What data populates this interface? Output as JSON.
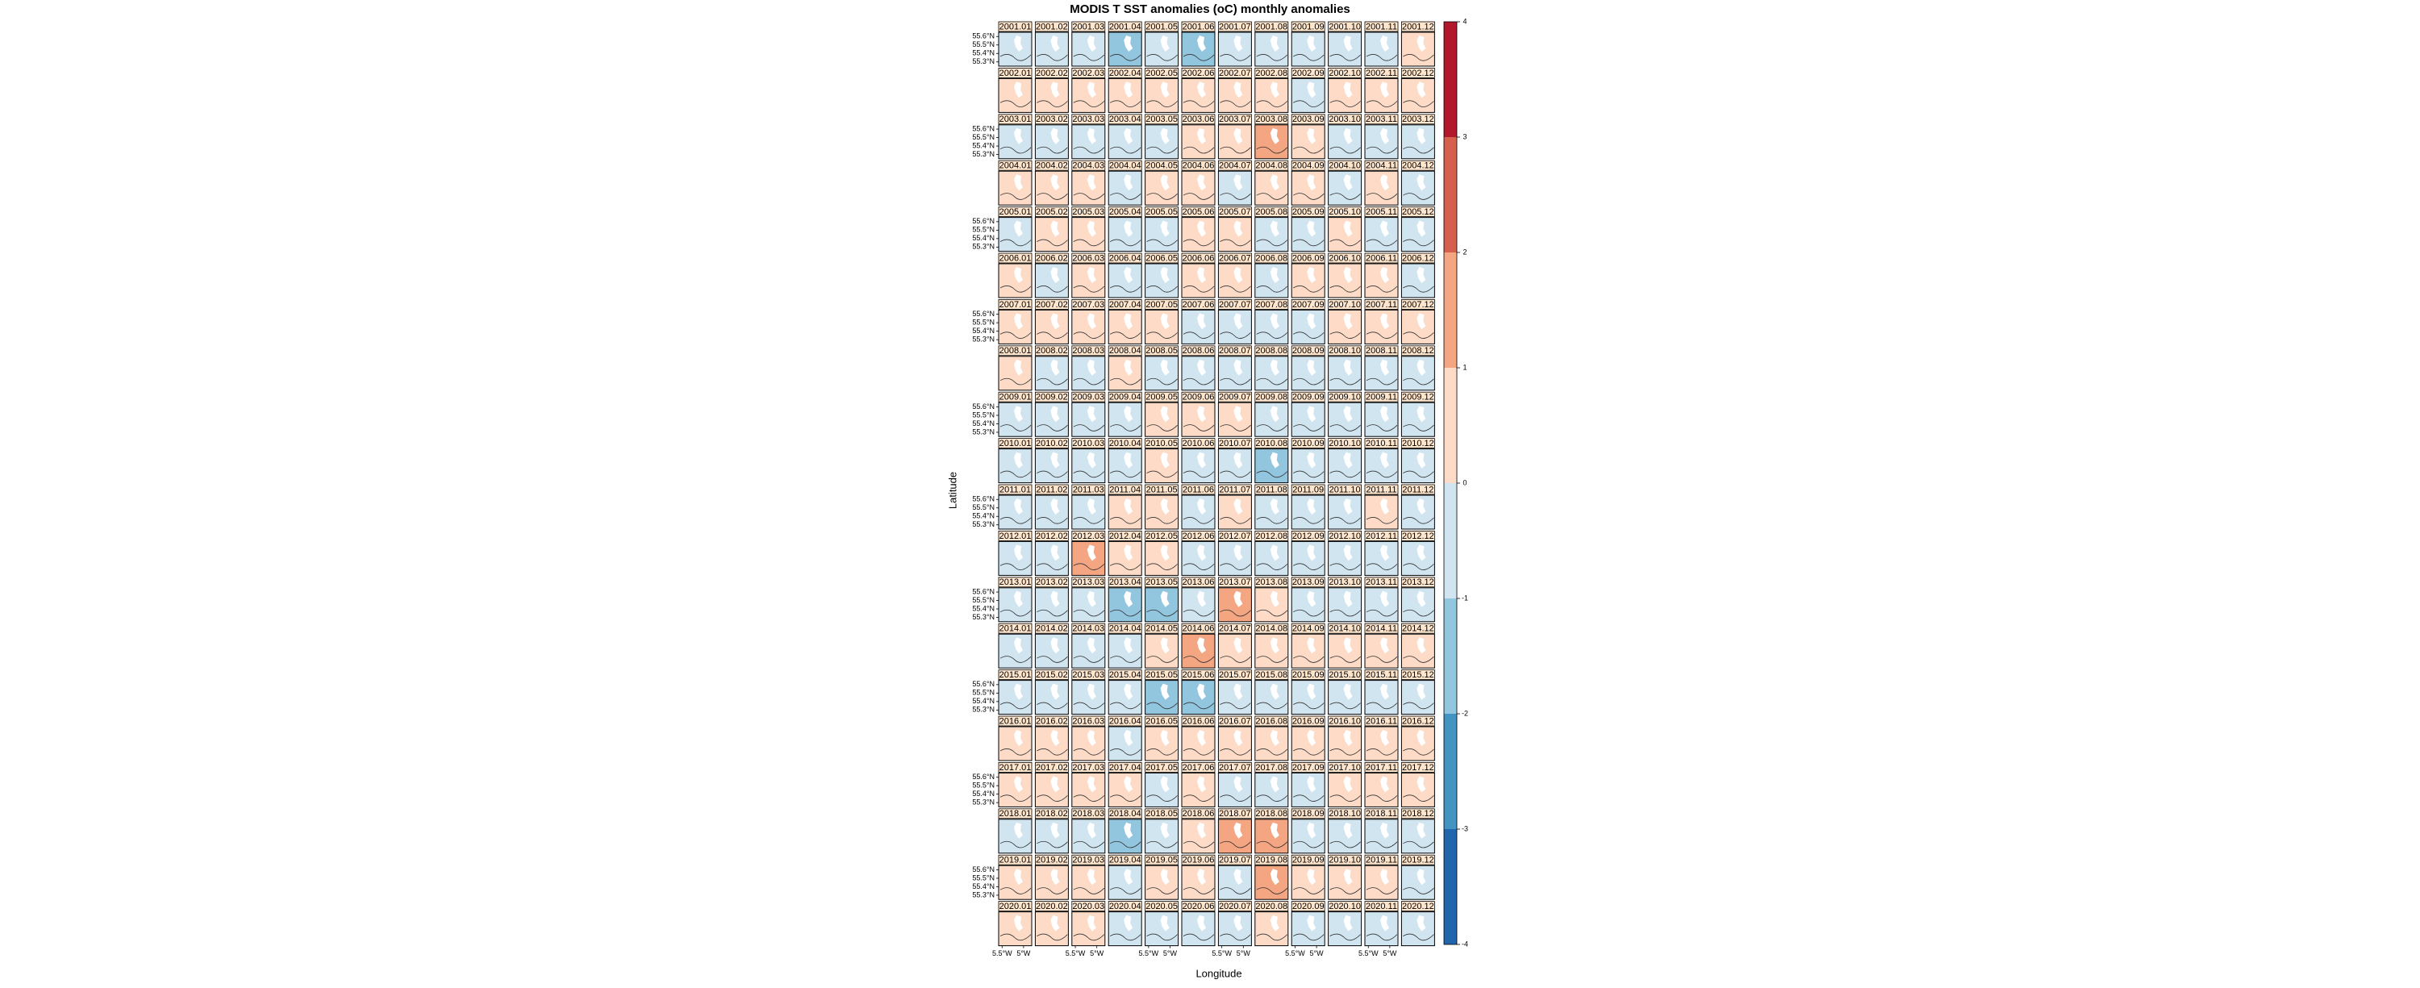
{
  "chart_data": {
    "type": "small-multiples-map",
    "title": "MODIS T SST anomalies (oC) monthly anomalies",
    "xlabel": "Longitude",
    "ylabel": "Latitude",
    "xlim": [
      -5.58,
      -4.81
    ],
    "ylim": [
      55.25,
      55.65
    ],
    "xticks": [
      {
        "value": -5.5,
        "label": "5.5°W"
      },
      {
        "value": -5,
        "label": "5°W"
      }
    ],
    "yticks": [
      {
        "value": 55.6,
        "label": "55.6°N"
      },
      {
        "value": 55.5,
        "label": "55.5°N"
      },
      {
        "value": 55.4,
        "label": "55.4°N"
      },
      {
        "value": 55.3,
        "label": "55.3°N"
      }
    ],
    "colorbar": {
      "lim": [
        -4,
        4
      ],
      "ticks": [
        -4,
        -3,
        -2,
        -1,
        0,
        1,
        2,
        3,
        4
      ],
      "colors": [
        "#2166ac",
        "#4393c3",
        "#92c5de",
        "#d1e5f0",
        "#fddbc7",
        "#f4a582",
        "#d6604d",
        "#b2182b"
      ]
    },
    "panel_labels": [
      [
        "2001.01",
        "2001.02",
        "2001.03",
        "2001.04",
        "2001.05",
        "2001.06",
        "2001.07",
        "2001.08",
        "2001.09",
        "2001.10",
        "2001.11",
        "2001.12"
      ],
      [
        "2002.01",
        "2002.02",
        "2002.03",
        "2002.04",
        "2002.05",
        "2002.06",
        "2002.07",
        "2002.08",
        "2002.09",
        "2002.10",
        "2002.11",
        "2002.12"
      ],
      [
        "2003.01",
        "2003.02",
        "2003.03",
        "2003.04",
        "2003.05",
        "2003.06",
        "2003.07",
        "2003.08",
        "2003.09",
        "2003.10",
        "2003.11",
        "2003.12"
      ],
      [
        "2004.01",
        "2004.02",
        "2004.03",
        "2004.04",
        "2004.05",
        "2004.06",
        "2004.07",
        "2004.08",
        "2004.09",
        "2004.10",
        "2004.11",
        "2004.12"
      ],
      [
        "2005.01",
        "2005.02",
        "2005.03",
        "2005.04",
        "2005.05",
        "2005.06",
        "2005.07",
        "2005.08",
        "2005.09",
        "2005.10",
        "2005.11",
        "2005.12"
      ],
      [
        "2006.01",
        "2006.02",
        "2006.03",
        "2006.04",
        "2006.05",
        "2006.06",
        "2006.07",
        "2006.08",
        "2006.09",
        "2006.10",
        "2006.11",
        "2006.12"
      ],
      [
        "2007.01",
        "2007.02",
        "2007.03",
        "2007.04",
        "2007.05",
        "2007.06",
        "2007.07",
        "2007.08",
        "2007.09",
        "2007.10",
        "2007.11",
        "2007.12"
      ],
      [
        "2008.01",
        "2008.02",
        "2008.03",
        "2008.04",
        "2008.05",
        "2008.06",
        "2008.07",
        "2008.08",
        "2008.09",
        "2008.10",
        "2008.11",
        "2008.12"
      ],
      [
        "2009.01",
        "2009.02",
        "2009.03",
        "2009.04",
        "2009.05",
        "2009.06",
        "2009.07",
        "2009.08",
        "2009.09",
        "2009.10",
        "2009.11",
        "2009.12"
      ],
      [
        "2010.01",
        "2010.02",
        "2010.03",
        "2010.04",
        "2010.05",
        "2010.06",
        "2010.07",
        "2010.08",
        "2010.09",
        "2010.10",
        "2010.11",
        "2010.12"
      ],
      [
        "2011.01",
        "2011.02",
        "2011.03",
        "2011.04",
        "2011.05",
        "2011.06",
        "2011.07",
        "2011.08",
        "2011.09",
        "2011.10",
        "2011.11",
        "2011.12"
      ],
      [
        "2012.01",
        "2012.02",
        "2012.03",
        "2012.04",
        "2012.05",
        "2012.06",
        "2012.07",
        "2012.08",
        "2012.09",
        "2012.10",
        "2012.11",
        "2012.12"
      ],
      [
        "2013.01",
        "2013.02",
        "2013.03",
        "2013.04",
        "2013.05",
        "2013.06",
        "2013.07",
        "2013.08",
        "2013.09",
        "2013.10",
        "2013.11",
        "2013.12"
      ],
      [
        "2014.01",
        "2014.02",
        "2014.03",
        "2014.04",
        "2014.05",
        "2014.06",
        "2014.07",
        "2014.08",
        "2014.09",
        "2014.10",
        "2014.11",
        "2014.12"
      ],
      [
        "2015.01",
        "2015.02",
        "2015.03",
        "2015.04",
        "2015.05",
        "2015.06",
        "2015.07",
        "2015.08",
        "2015.09",
        "2015.10",
        "2015.11",
        "2015.12"
      ],
      [
        "2016.01",
        "2016.02",
        "2016.03",
        "2016.04",
        "2016.05",
        "2016.06",
        "2016.07",
        "2016.08",
        "2016.09",
        "2016.10",
        "2016.11",
        "2016.12"
      ],
      [
        "2017.01",
        "2017.02",
        "2017.03",
        "2017.04",
        "2017.05",
        "2017.06",
        "2017.07",
        "2017.08",
        "2017.09",
        "2017.10",
        "2017.11",
        "2017.12"
      ],
      [
        "2018.01",
        "2018.02",
        "2018.03",
        "2018.04",
        "2018.05",
        "2018.06",
        "2018.07",
        "2018.08",
        "2018.09",
        "2018.10",
        "2018.11",
        "2018.12"
      ],
      [
        "2019.01",
        "2019.02",
        "2019.03",
        "2019.04",
        "2019.05",
        "2019.06",
        "2019.07",
        "2019.08",
        "2019.09",
        "2019.10",
        "2019.11",
        "2019.12"
      ],
      [
        "2020.01",
        "2020.02",
        "2020.03",
        "2020.04",
        "2020.05",
        "2020.06",
        "2020.07",
        "2020.08",
        "2020.09",
        "2020.10",
        "2020.11",
        "2020.12"
      ]
    ],
    "values": [
      [
        -0.5,
        -0.5,
        -0.5,
        -1.2,
        -0.5,
        -1.2,
        -0.5,
        -0.5,
        -0.5,
        -0.5,
        -0.5,
        0.5
      ],
      [
        0.5,
        0.5,
        0.5,
        0.5,
        0.5,
        0.5,
        0.5,
        0.5,
        -0.5,
        0.5,
        0.5,
        0.5
      ],
      [
        -0.5,
        -0.5,
        -0.5,
        -0.5,
        -0.5,
        0.5,
        0.5,
        1.2,
        0.5,
        -0.5,
        -0.5,
        -0.5
      ],
      [
        0.5,
        0.5,
        0.5,
        -0.5,
        0.5,
        0.5,
        -0.5,
        0.5,
        0.5,
        -0.5,
        0.5,
        -0.5
      ],
      [
        -0.5,
        0.5,
        0.5,
        -0.5,
        -0.5,
        0.5,
        0.5,
        -0.5,
        -0.5,
        0.5,
        -0.5,
        -0.5
      ],
      [
        0.5,
        -0.5,
        0.5,
        -0.5,
        -0.5,
        0.5,
        0.5,
        -0.5,
        0.5,
        0.5,
        0.5,
        -0.5
      ],
      [
        0.5,
        0.5,
        0.5,
        0.5,
        0.5,
        -0.5,
        -0.5,
        -0.5,
        -0.5,
        0.5,
        0.5,
        0.5
      ],
      [
        0.5,
        -0.5,
        -0.5,
        0.5,
        -0.5,
        -0.5,
        -0.5,
        -0.5,
        -0.5,
        -0.5,
        -0.5,
        -0.5
      ],
      [
        -0.5,
        -0.5,
        -0.5,
        -0.5,
        0.5,
        0.5,
        0.5,
        -0.5,
        -0.5,
        -0.5,
        -0.5,
        -0.5
      ],
      [
        -0.5,
        -0.5,
        -0.5,
        -0.5,
        0.5,
        -0.5,
        -0.5,
        -1.2,
        -0.5,
        -0.5,
        -0.5,
        -0.5
      ],
      [
        -0.5,
        -0.5,
        -0.5,
        0.5,
        0.5,
        -0.5,
        0.5,
        -0.5,
        -0.5,
        -0.5,
        0.5,
        -0.5
      ],
      [
        -0.5,
        -0.5,
        1.2,
        0.5,
        0.5,
        -0.5,
        -0.5,
        -0.5,
        -0.5,
        -0.5,
        -0.5,
        -0.5
      ],
      [
        -0.5,
        -0.5,
        -0.5,
        -1.2,
        -1.2,
        -0.5,
        1.2,
        0.5,
        -0.5,
        -0.5,
        -0.5,
        -0.5
      ],
      [
        -0.5,
        -0.5,
        -0.5,
        -0.5,
        0.5,
        1.2,
        0.5,
        0.5,
        0.5,
        0.5,
        0.5,
        0.5
      ],
      [
        -0.5,
        -0.5,
        -0.5,
        -0.5,
        -1.2,
        -1.2,
        -0.5,
        -0.5,
        -0.5,
        -0.5,
        -0.5,
        -0.5
      ],
      [
        0.5,
        0.5,
        0.5,
        -0.5,
        0.5,
        0.5,
        0.5,
        0.5,
        0.5,
        0.5,
        0.5,
        0.5
      ],
      [
        0.5,
        0.5,
        0.5,
        0.5,
        -0.5,
        0.5,
        -0.5,
        -0.5,
        -0.5,
        0.5,
        0.5,
        0.5
      ],
      [
        -0.5,
        -0.5,
        -0.5,
        -1.2,
        -0.5,
        0.5,
        1.2,
        1.2,
        -0.5,
        -0.5,
        -0.5,
        -0.5
      ],
      [
        0.5,
        0.5,
        0.5,
        -0.5,
        0.5,
        0.5,
        -0.5,
        1.2,
        0.5,
        0.5,
        0.5,
        -0.5
      ],
      [
        0.5,
        0.5,
        0.5,
        -0.5,
        -0.5,
        -0.5,
        -0.5,
        0.5,
        -0.5,
        -0.5,
        -0.5,
        -0.5
      ]
    ]
  }
}
